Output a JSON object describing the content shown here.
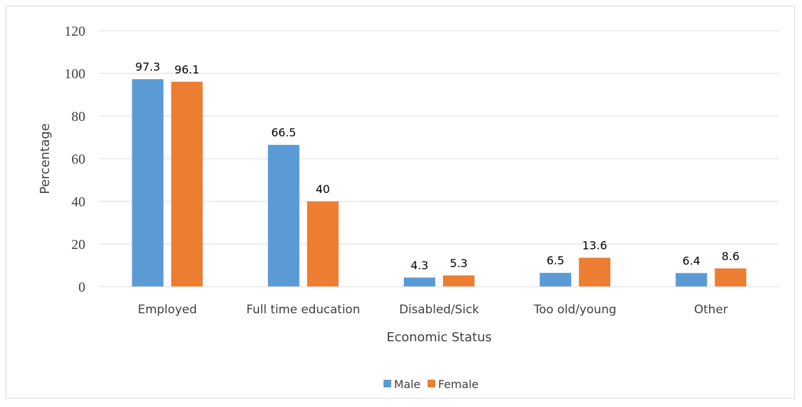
{
  "chart_data": {
    "type": "bar",
    "categories": [
      "Employed",
      "Full time education",
      "Disabled/Sick",
      "Too old/young",
      "Other"
    ],
    "series": [
      {
        "name": "Male",
        "color": "#5b9bd5",
        "values": [
          97.3,
          66.5,
          4.3,
          6.5,
          6.4
        ],
        "labels": [
          "97.3",
          "66.5",
          "4.3",
          "6.5",
          "6.4"
        ]
      },
      {
        "name": "Female",
        "color": "#ed7d31",
        "values": [
          96.1,
          40,
          5.3,
          13.6,
          8.6
        ],
        "labels": [
          "96.1",
          "40",
          "5.3",
          "13.6",
          "8.6"
        ]
      }
    ],
    "title": "",
    "xlabel": "Economic Status",
    "ylabel": "Percentage",
    "ylim": [
      0,
      120
    ],
    "yticks": [
      "0",
      "20",
      "40",
      "60",
      "80",
      "100",
      "120"
    ],
    "grid": true,
    "legend_position": "bottom"
  }
}
